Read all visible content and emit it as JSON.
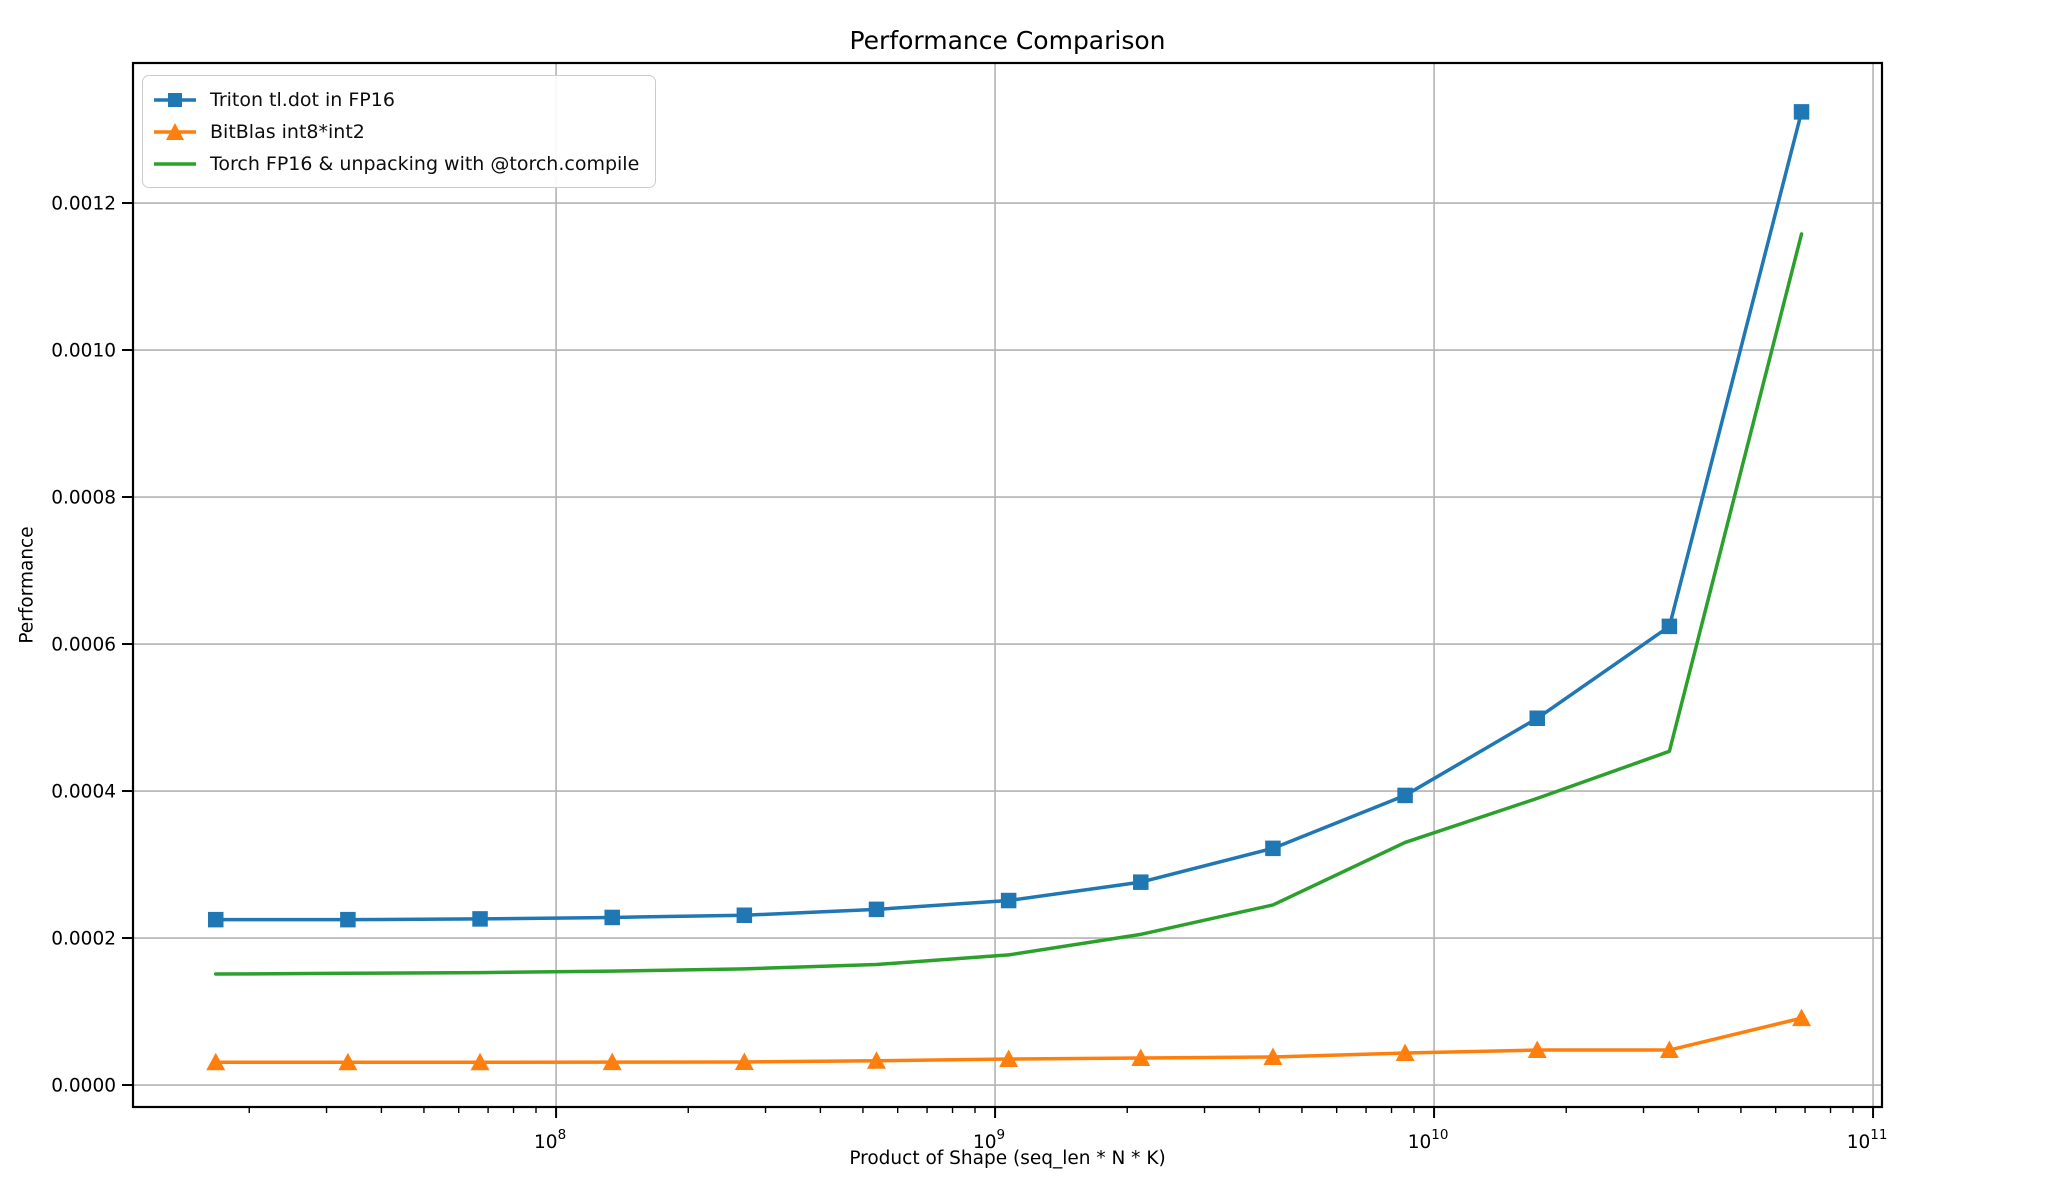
{
  "chart_data": {
    "type": "line",
    "title": "Performance Comparison",
    "xlabel": "Product of Shape (seq_len * N * K)",
    "ylabel": "Performance",
    "x_scale": "log",
    "grid": true,
    "legend_position": "upper left",
    "background": "#ffffff",
    "grid_color": "#b3b3b3",
    "spine_color": "#000000",
    "xlim": [
      10870000,
      104800000000
    ],
    "ylim": [
      -2.99e-05,
      0.0013905
    ],
    "x": [
      16777216,
      33554432,
      67108864,
      134217728,
      268435456,
      536870912,
      1073741824,
      2147483648,
      4294967296,
      8589934592,
      17179869184,
      34359738368,
      68719476736
    ],
    "x_ticks": [
      {
        "value": 100000000,
        "base": "10",
        "exponent": "8"
      },
      {
        "value": 1000000000,
        "base": "10",
        "exponent": "9"
      },
      {
        "value": 10000000000,
        "base": "10",
        "exponent": "10"
      },
      {
        "value": 100000000000,
        "base": "10",
        "exponent": "11"
      }
    ],
    "y_ticks": [
      {
        "value": 0.0,
        "label": "0.0000"
      },
      {
        "value": 0.0002,
        "label": "0.0002"
      },
      {
        "value": 0.0004,
        "label": "0.0004"
      },
      {
        "value": 0.0006,
        "label": "0.0006"
      },
      {
        "value": 0.0008,
        "label": "0.0008"
      },
      {
        "value": 0.001,
        "label": "0.0010"
      },
      {
        "value": 0.0012,
        "label": "0.0012"
      }
    ],
    "series": [
      {
        "name": "Triton tl.dot in FP16",
        "color": "#1f77b4",
        "marker": "square",
        "values": [
          0.000225,
          0.000225,
          0.000226,
          0.000228,
          0.000231,
          0.000239,
          0.000251,
          0.000276,
          0.000322,
          0.000394,
          0.000499,
          0.000624,
          0.001324
        ]
      },
      {
        "name": "BitBlas int8*int2",
        "color": "#ff7f0e",
        "marker": "triangle",
        "values": [
          3.1e-05,
          3.1e-05,
          3.1e-05,
          3.12e-05,
          3.14e-05,
          3.3e-05,
          3.54e-05,
          3.67e-05,
          3.81e-05,
          4.35e-05,
          4.76e-05,
          4.76e-05,
          9.1e-05
        ]
      },
      {
        "name": "Torch FP16 & unpacking with @torch.compile",
        "color": "#2ca02c",
        "marker": "none",
        "values": [
          0.000151,
          0.000152,
          0.000153,
          0.000155,
          0.000158,
          0.000164,
          0.000177,
          0.000205,
          0.000245,
          0.00033,
          0.00039,
          0.000454,
          0.001158
        ]
      }
    ]
  }
}
